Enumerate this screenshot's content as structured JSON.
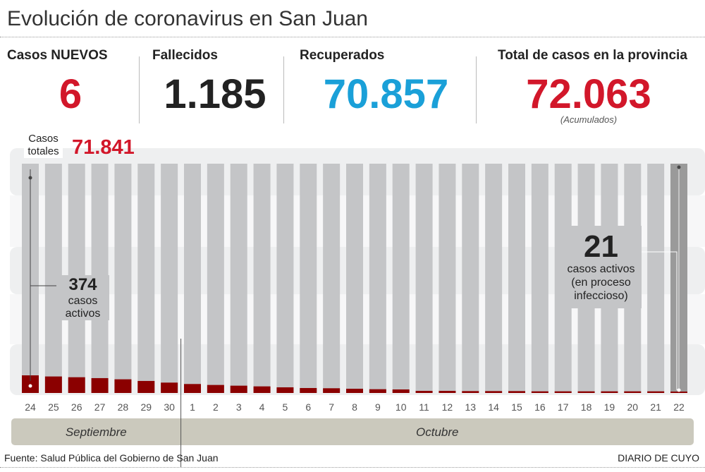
{
  "title": "Evolución de coronavirus en San Juan",
  "stats": {
    "new_label": "Casos NUEVOS",
    "new_value": "6",
    "deaths_label": "Fallecidos",
    "deaths_value": "1.185",
    "recovered_label": "Recuperados",
    "recovered_value": "70.857",
    "total_label": "Total de casos en la provincia",
    "total_value": "72.063",
    "total_note": "(Acumulados)"
  },
  "colors": {
    "red": "#d2172a",
    "blue": "#1aa0d8",
    "dark": "#222222",
    "active_bar": "#8b0000",
    "total_bar": "#c4c5c7",
    "last_bar": "#9a9a9a",
    "month_band": "#cbc9bd"
  },
  "annotations": {
    "start_total_label": "Casos totales",
    "start_total_value": "71.841",
    "start_active_value": "374",
    "start_active_label": "casos activos",
    "end_active_value": "21",
    "end_active_label": "casos activos (en proceso infeccioso)"
  },
  "chart_data": {
    "type": "bar",
    "categories": [
      "24",
      "25",
      "26",
      "27",
      "28",
      "29",
      "30",
      "1",
      "2",
      "3",
      "4",
      "5",
      "6",
      "7",
      "8",
      "9",
      "10",
      "11",
      "12",
      "13",
      "14",
      "15",
      "16",
      "17",
      "18",
      "19",
      "20",
      "21",
      "22"
    ],
    "months": [
      {
        "label": "Septiembre",
        "days": 7
      },
      {
        "label": "Octubre",
        "days": 22
      }
    ],
    "series": [
      {
        "name": "Casos totales",
        "values_known": {
          "first": 71841,
          "last": 72063
        }
      },
      {
        "name": "casos activos",
        "values": [
          374,
          350,
          334,
          315,
          290,
          255,
          220,
          190,
          170,
          155,
          140,
          120,
          105,
          100,
          90,
          80,
          75,
          45,
          45,
          40,
          40,
          40,
          35,
          35,
          35,
          35,
          35,
          35,
          21
        ]
      }
    ]
  },
  "source": "Fuente: Salud Pública del Gobierno de San Juan",
  "brand": "DIARIO DE CUYO"
}
